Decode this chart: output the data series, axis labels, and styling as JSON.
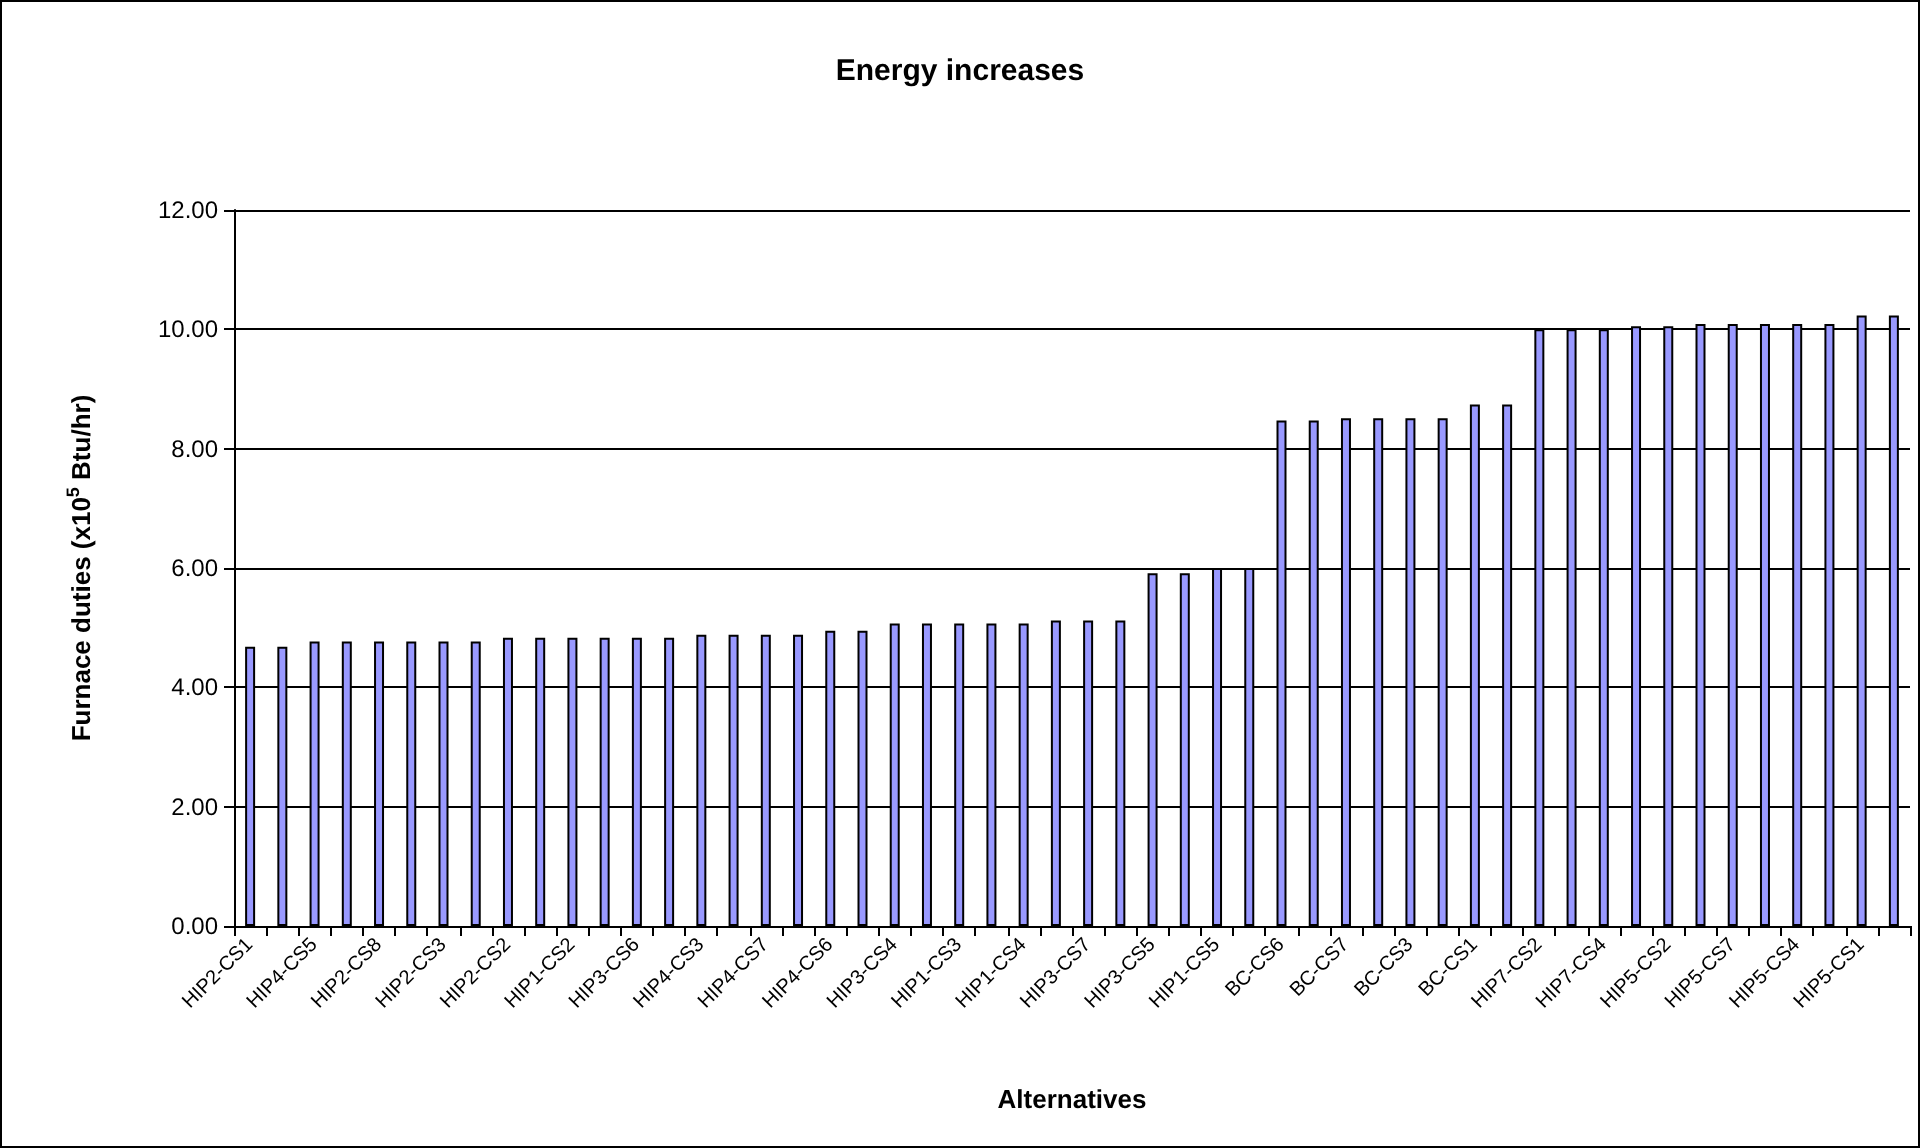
{
  "chart_data": {
    "type": "bar",
    "title": "Energy increases",
    "xlabel": "Alternatives",
    "ylabel": "Furnace duties (x10$^{5}$ Btu/hr)",
    "categories": [
      "HIP2-CS1",
      null,
      "HIP4-CS5",
      null,
      "HIP2-CS8",
      null,
      "HIP2-CS3",
      null,
      "HIP2-CS2",
      null,
      "HIP1-CS2",
      null,
      "HIP3-CS6",
      null,
      "HIP4-CS3",
      null,
      "HIP4-CS7",
      null,
      "HIP4-CS6",
      null,
      "HIP3-CS4",
      null,
      "HIP1-CS3",
      null,
      "HIP1-CS4",
      null,
      "HIP3-CS7",
      null,
      "HIP3-CS5",
      null,
      "HIP1-CS5",
      null,
      "BC-CS6",
      null,
      "BC-CS7",
      null,
      "BC-CS3",
      null,
      "BC-CS1",
      null,
      "HIP7-CS2",
      null,
      "HIP7-CS4",
      null,
      "HIP5-CS2",
      null,
      "HIP5-CS7",
      null,
      "HIP5-CS4",
      null,
      "HIP5-CS1",
      null
    ],
    "values": [
      4.68,
      4.68,
      4.77,
      4.77,
      4.77,
      4.77,
      4.77,
      4.77,
      4.83,
      4.83,
      4.83,
      4.83,
      4.83,
      4.83,
      4.88,
      4.88,
      4.88,
      4.88,
      4.95,
      4.95,
      5.07,
      5.07,
      5.07,
      5.07,
      5.07,
      5.12,
      5.12,
      5.12,
      5.91,
      5.91,
      6.0,
      6.0,
      8.47,
      8.47,
      8.51,
      8.51,
      8.51,
      8.51,
      8.74,
      8.74,
      10.0,
      10.0,
      10.0,
      10.05,
      10.05,
      10.09,
      10.09,
      10.09,
      10.09,
      10.09,
      10.23,
      10.23
    ],
    "color": "#9999ff",
    "ylim": [
      0,
      12
    ],
    "yticks": [
      {
        "value": 0,
        "label": "0.00"
      },
      {
        "value": 2,
        "label": "2.00"
      },
      {
        "value": 4,
        "label": "4.00"
      },
      {
        "value": 6,
        "label": "6.00"
      },
      {
        "value": 8,
        "label": "8.00"
      },
      {
        "value": 10,
        "label": "10.00"
      },
      {
        "value": 12,
        "label": "12.00"
      }
    ],
    "grid": "y"
  }
}
